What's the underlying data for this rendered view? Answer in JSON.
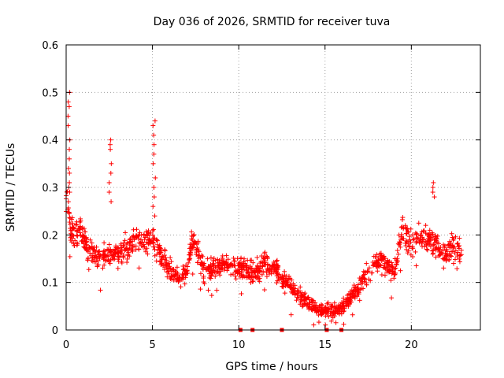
{
  "chart_data": {
    "type": "scatter",
    "title": "Day 036 of 2026, SRMTID for receiver tuva",
    "xlabel": "GPS time / hours",
    "ylabel": "SRMTID / TECUs",
    "xlim": [
      0,
      24
    ],
    "ylim": [
      0,
      0.6
    ],
    "xticks": [
      0,
      5,
      10,
      15,
      20
    ],
    "yticks": [
      0,
      0.1,
      0.2,
      0.3,
      0.4,
      0.5,
      0.6
    ],
    "xtick_labels": [
      "0",
      "5",
      "10",
      "15",
      "20"
    ],
    "ytick_labels": [
      "0",
      "0.1",
      "0.2",
      "0.3",
      "0.4",
      "0.5",
      "0.6"
    ],
    "grid": true,
    "marker_color": "#ff0000",
    "series": [
      {
        "name": "SRMTID",
        "marker": "plus",
        "trend": [
          [
            0.0,
            0.26
          ],
          [
            0.1,
            0.27
          ],
          [
            0.3,
            0.21
          ],
          [
            0.5,
            0.2
          ],
          [
            0.8,
            0.21
          ],
          [
            1.0,
            0.19
          ],
          [
            1.5,
            0.16
          ],
          [
            2.0,
            0.15
          ],
          [
            2.5,
            0.16
          ],
          [
            3.0,
            0.16
          ],
          [
            3.5,
            0.17
          ],
          [
            4.0,
            0.19
          ],
          [
            4.5,
            0.19
          ],
          [
            5.0,
            0.19
          ],
          [
            5.5,
            0.15
          ],
          [
            6.0,
            0.13
          ],
          [
            6.5,
            0.11
          ],
          [
            7.0,
            0.12
          ],
          [
            7.3,
            0.19
          ],
          [
            7.6,
            0.17
          ],
          [
            8.0,
            0.12
          ],
          [
            8.5,
            0.13
          ],
          [
            9.0,
            0.14
          ],
          [
            9.5,
            0.14
          ],
          [
            10.0,
            0.13
          ],
          [
            10.5,
            0.13
          ],
          [
            11.0,
            0.12
          ],
          [
            11.5,
            0.14
          ],
          [
            12.0,
            0.13
          ],
          [
            12.5,
            0.11
          ],
          [
            13.0,
            0.09
          ],
          [
            13.5,
            0.075
          ],
          [
            14.0,
            0.06
          ],
          [
            14.5,
            0.045
          ],
          [
            15.0,
            0.04
          ],
          [
            15.5,
            0.04
          ],
          [
            16.0,
            0.05
          ],
          [
            16.5,
            0.07
          ],
          [
            17.0,
            0.09
          ],
          [
            17.5,
            0.12
          ],
          [
            18.0,
            0.14
          ],
          [
            18.5,
            0.14
          ],
          [
            19.0,
            0.12
          ],
          [
            19.5,
            0.21
          ],
          [
            20.0,
            0.19
          ],
          [
            20.5,
            0.2
          ],
          [
            21.0,
            0.19
          ],
          [
            21.5,
            0.18
          ],
          [
            22.0,
            0.16
          ],
          [
            22.5,
            0.18
          ],
          [
            22.9,
            0.16
          ]
        ],
        "spread": 0.035,
        "spikes": [
          {
            "x": 0.15,
            "values": [
              0.5,
              0.48,
              0.47,
              0.45,
              0.43,
              0.4,
              0.38,
              0.36,
              0.34,
              0.33,
              0.31,
              0.3,
              0.29
            ]
          },
          {
            "x": 2.55,
            "values": [
              0.4,
              0.39,
              0.38,
              0.35,
              0.33,
              0.31,
              0.29,
              0.27
            ]
          },
          {
            "x": 5.1,
            "values": [
              0.44,
              0.43,
              0.41,
              0.39,
              0.37,
              0.35,
              0.32,
              0.3,
              0.28,
              0.26,
              0.24
            ]
          },
          {
            "x": 21.3,
            "values": [
              0.31,
              0.3,
              0.29,
              0.28
            ]
          }
        ]
      }
    ],
    "gap_markers_x": [
      10.1,
      10.8,
      12.5,
      15.1,
      15.95
    ]
  }
}
